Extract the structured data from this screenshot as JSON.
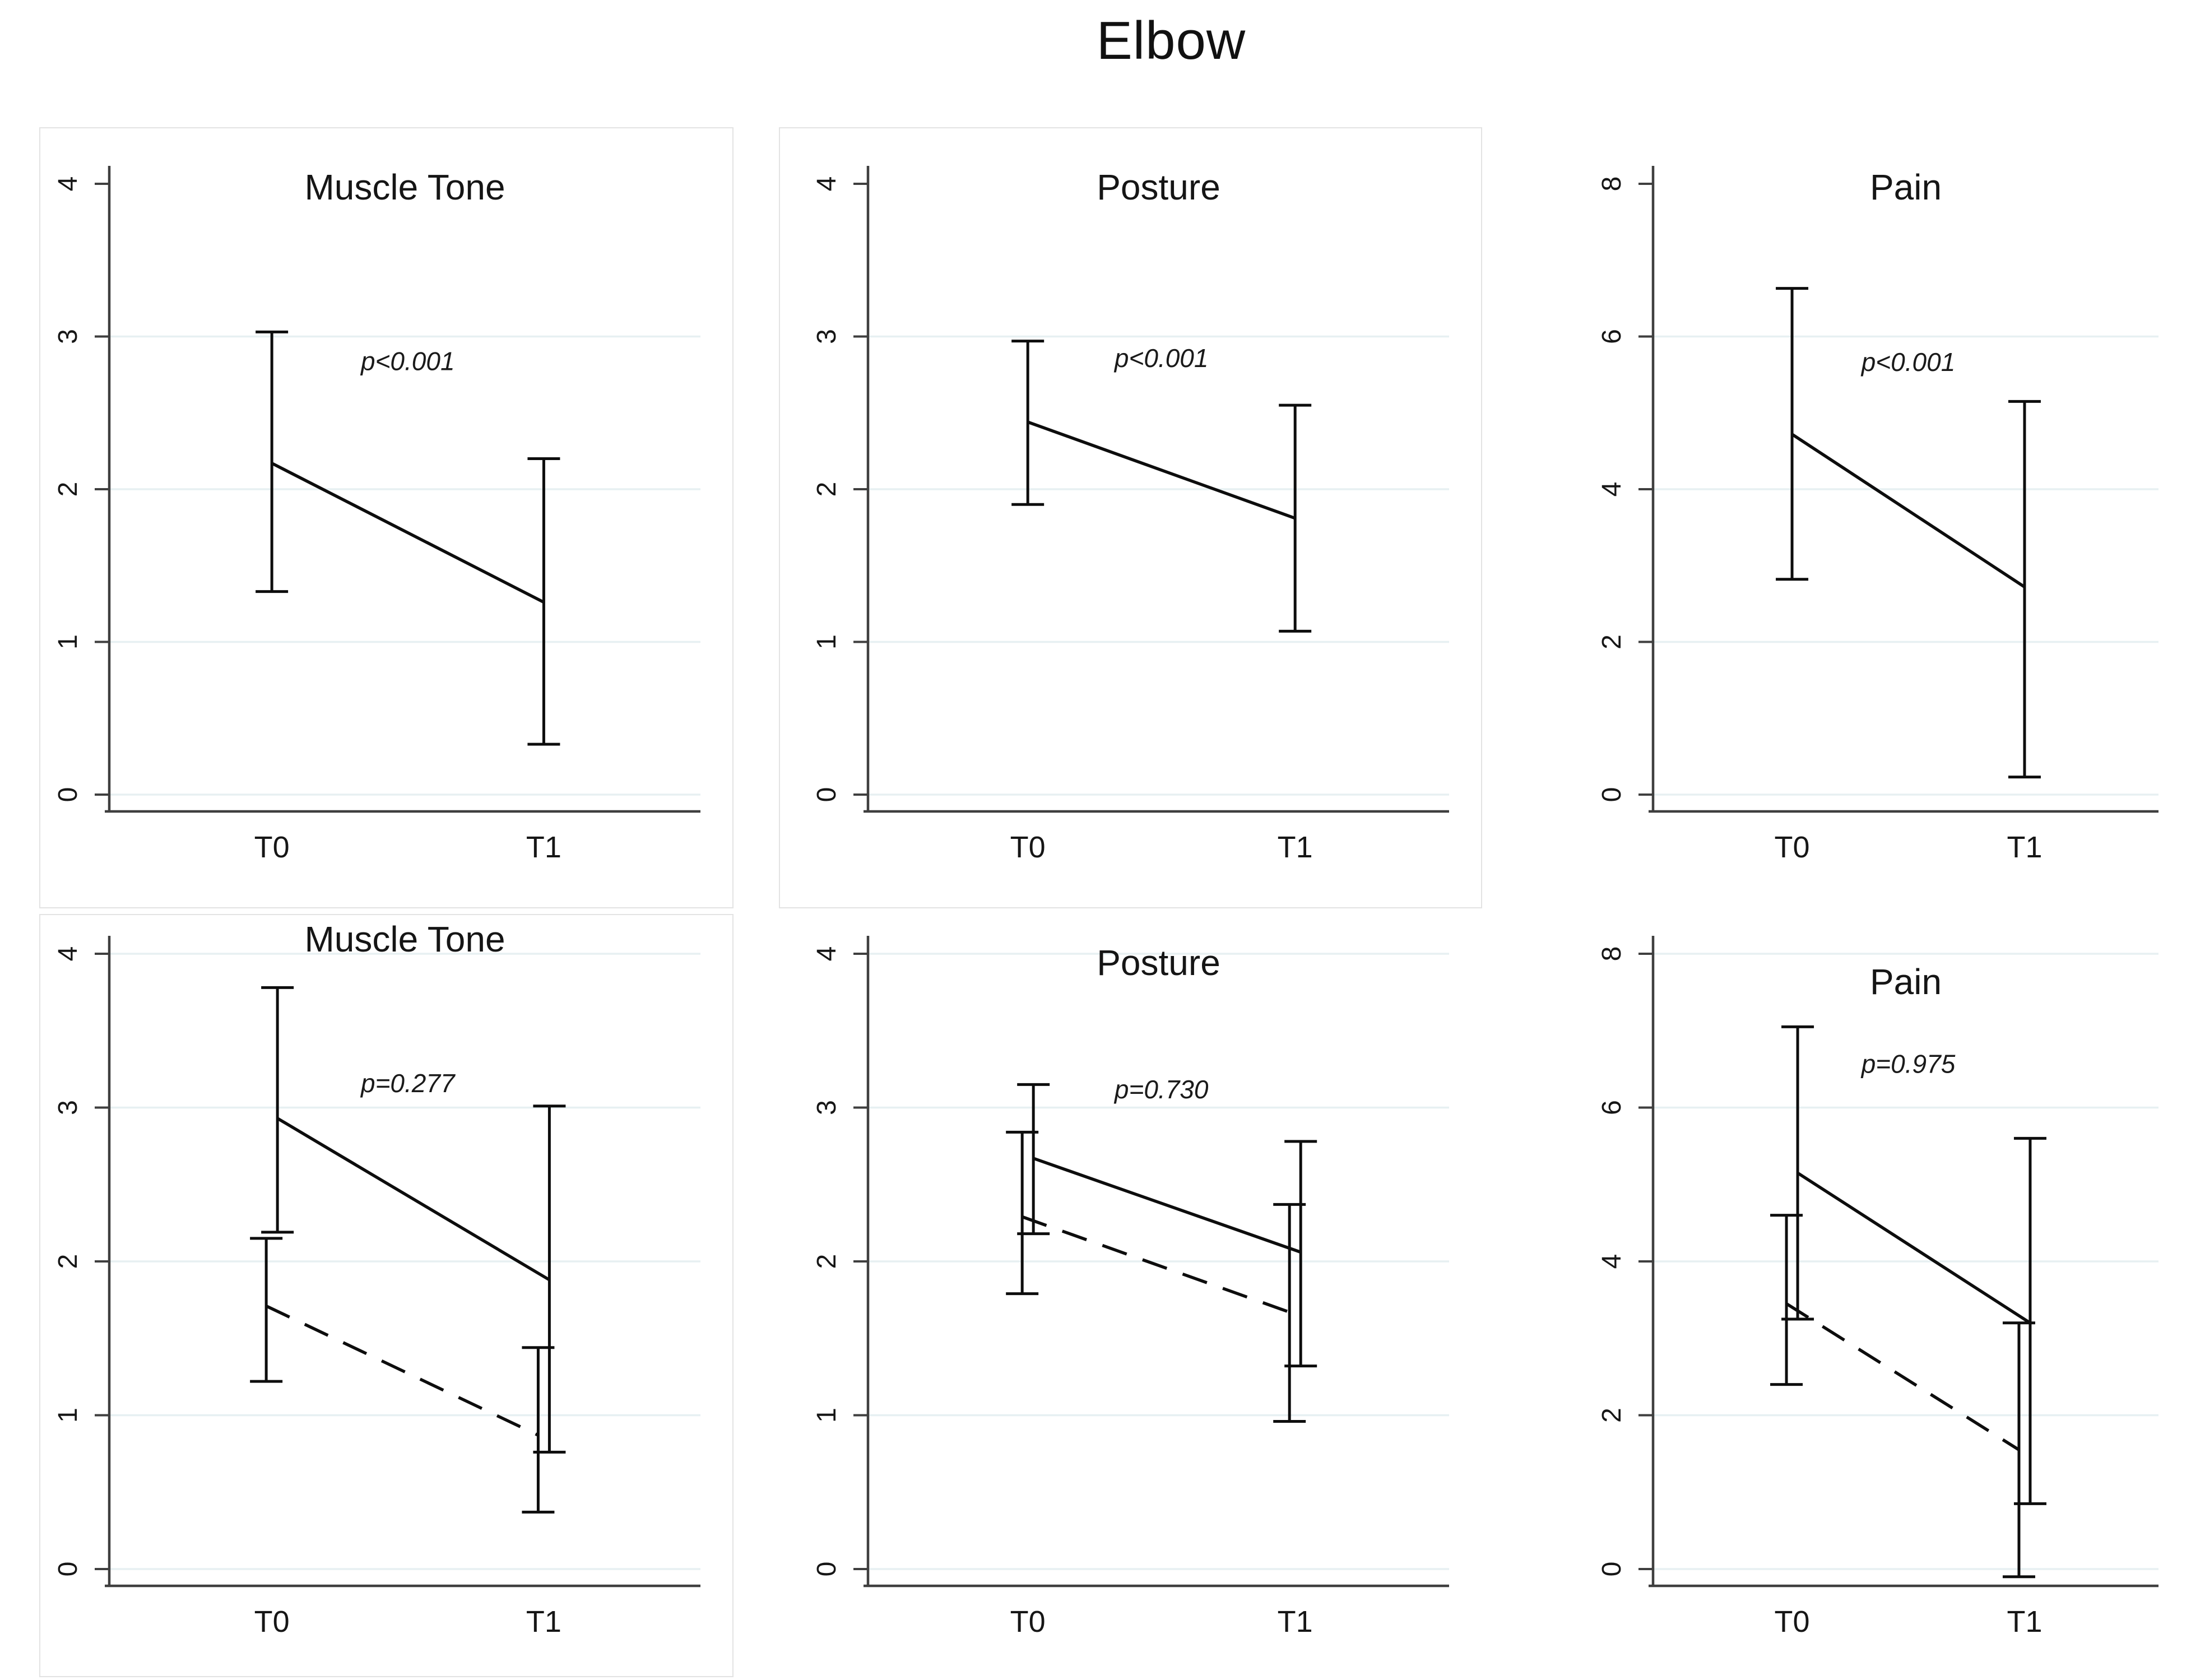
{
  "figure_title": "Elbow",
  "colors": {
    "data": "#0d0d0d",
    "grid": "#e7f0f2",
    "axis": "#3f3f3f",
    "text": "#161616"
  },
  "x_axis": {
    "categories": [
      "T0",
      "T1"
    ]
  },
  "chart_data": [
    {
      "type": "line",
      "title": "Muscle Tone",
      "position": "top-left",
      "xlabel": "",
      "ylabel": "",
      "ylim": [
        0,
        4
      ],
      "yticks": [
        0,
        1,
        2,
        3,
        4
      ],
      "grid": true,
      "legend_position": "none",
      "categories": [
        "T0",
        "T1"
      ],
      "p_value": {
        "text": "p<0.001",
        "y": 2.78
      },
      "series": [
        {
          "name": "solid",
          "style": "solid",
          "values": [
            2.17,
            1.26
          ],
          "ci_lower": [
            1.33,
            0.33
          ],
          "ci_upper": [
            3.03,
            2.2
          ]
        }
      ]
    },
    {
      "type": "line",
      "title": "Posture",
      "position": "top-middle",
      "xlabel": "",
      "ylabel": "",
      "ylim": [
        0,
        4
      ],
      "yticks": [
        0,
        1,
        2,
        3,
        4
      ],
      "grid": true,
      "legend_position": "none",
      "categories": [
        "T0",
        "T1"
      ],
      "p_value": {
        "text": "p<0.001",
        "y": 2.8
      },
      "series": [
        {
          "name": "solid",
          "style": "solid",
          "values": [
            2.44,
            1.81
          ],
          "ci_lower": [
            1.9,
            1.07
          ],
          "ci_upper": [
            2.97,
            2.55
          ]
        }
      ]
    },
    {
      "type": "line",
      "title": "Pain",
      "position": "top-right",
      "xlabel": "",
      "ylabel": "",
      "ylim": [
        0,
        8
      ],
      "yticks": [
        0,
        2,
        4,
        6,
        8
      ],
      "grid": true,
      "legend_position": "none",
      "categories": [
        "T0",
        "T1"
      ],
      "p_value": {
        "text": "p<0.001",
        "y": 5.55
      },
      "series": [
        {
          "name": "solid",
          "style": "solid",
          "values": [
            4.72,
            2.72
          ],
          "ci_lower": [
            2.82,
            0.23
          ],
          "ci_upper": [
            6.63,
            5.15
          ]
        }
      ]
    },
    {
      "type": "line",
      "title": "Muscle Tone",
      "position": "bottom-left",
      "xlabel": "",
      "ylabel": "",
      "ylim": [
        0,
        4
      ],
      "yticks": [
        0,
        1,
        2,
        3,
        4
      ],
      "grid": true,
      "legend_position": "none",
      "categories": [
        "T0",
        "T1"
      ],
      "p_value": {
        "text": "p=0.277",
        "y": 3.1
      },
      "series": [
        {
          "name": "solid",
          "style": "solid",
          "values": [
            2.93,
            1.88
          ],
          "ci_lower": [
            2.19,
            0.76
          ],
          "ci_upper": [
            3.78,
            3.01
          ]
        },
        {
          "name": "dashed",
          "style": "dashed",
          "values": [
            1.71,
            0.87
          ],
          "ci_lower": [
            1.22,
            0.37
          ],
          "ci_upper": [
            2.15,
            1.44
          ]
        }
      ]
    },
    {
      "type": "line",
      "title": "Posture",
      "position": "bottom-middle",
      "xlabel": "",
      "ylabel": "",
      "ylim": [
        0,
        4
      ],
      "yticks": [
        0,
        1,
        2,
        3,
        4
      ],
      "grid": true,
      "legend_position": "none",
      "categories": [
        "T0",
        "T1"
      ],
      "p_value": {
        "text": "p=0.730",
        "y": 3.06
      },
      "series": [
        {
          "name": "solid",
          "style": "solid",
          "values": [
            2.67,
            2.06
          ],
          "ci_lower": [
            2.18,
            1.32
          ],
          "ci_upper": [
            3.15,
            2.78
          ]
        },
        {
          "name": "dashed",
          "style": "dashed",
          "values": [
            2.29,
            1.67
          ],
          "ci_lower": [
            1.79,
            0.96
          ],
          "ci_upper": [
            2.84,
            2.37
          ]
        }
      ]
    },
    {
      "type": "line",
      "title": "Pain",
      "position": "bottom-right",
      "xlabel": "",
      "ylabel": "",
      "ylim": [
        0,
        8
      ],
      "yticks": [
        0,
        2,
        4,
        6,
        8
      ],
      "grid": true,
      "legend_position": "none",
      "categories": [
        "T0",
        "T1"
      ],
      "p_value": {
        "text": "p=0.975",
        "y": 6.45
      },
      "series": [
        {
          "name": "solid",
          "style": "solid",
          "values": [
            5.15,
            3.2
          ],
          "ci_lower": [
            3.25,
            0.85
          ],
          "ci_upper": [
            7.05,
            5.6
          ]
        },
        {
          "name": "dashed",
          "style": "dashed",
          "values": [
            3.45,
            1.55
          ],
          "ci_lower": [
            2.4,
            -0.1
          ],
          "ci_upper": [
            4.6,
            3.2
          ]
        }
      ]
    }
  ]
}
